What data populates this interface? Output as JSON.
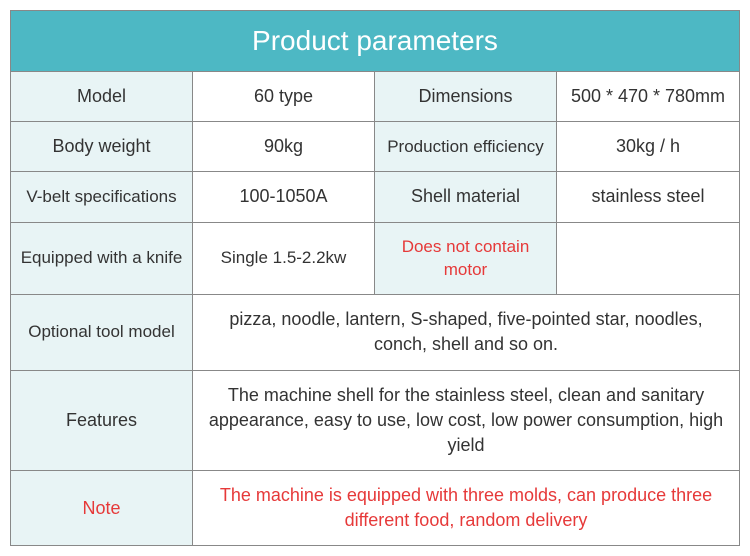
{
  "header": {
    "title": "Product parameters"
  },
  "colors": {
    "header_bg": "#4db8c4",
    "header_text": "#ffffff",
    "label_bg": "#e8f4f5",
    "warning_text": "#e63939",
    "border": "#888888",
    "body_text": "#333333"
  },
  "rows": [
    {
      "type": "four",
      "cells": [
        {
          "text": "Model",
          "label": true
        },
        {
          "text": "60 type",
          "label": false
        },
        {
          "text": "Dimensions",
          "label": true
        },
        {
          "text": "500 * 470 * 780mm",
          "label": false
        }
      ]
    },
    {
      "type": "four",
      "cells": [
        {
          "text": "Body weight",
          "label": true
        },
        {
          "text": "90kg",
          "label": false
        },
        {
          "text": "Production efficiency",
          "label": true
        },
        {
          "text": "30kg / h",
          "label": false
        }
      ]
    },
    {
      "type": "four",
      "cells": [
        {
          "text": "V-belt specifications",
          "label": true
        },
        {
          "text": "100-1050A",
          "label": false
        },
        {
          "text": "Shell material",
          "label": true
        },
        {
          "text": "stainless steel",
          "label": false
        }
      ]
    },
    {
      "type": "four",
      "cells": [
        {
          "text": "Equipped with a knife",
          "label": true
        },
        {
          "text": "Single 1.5-2.2kw",
          "label": false
        },
        {
          "text": "Does not contain motor",
          "label": true,
          "red": true
        },
        {
          "text": "",
          "label": false
        }
      ]
    },
    {
      "type": "two",
      "cells": [
        {
          "text": "Optional tool model",
          "label": true
        },
        {
          "text": "pizza, noodle, lantern, S-shaped, five-pointed star, noodles, conch, shell and so on.",
          "label": false
        }
      ]
    },
    {
      "type": "two",
      "cells": [
        {
          "text": "Features",
          "label": true
        },
        {
          "text": "The machine shell for the stainless steel, clean and sanitary appearance, easy to use, low cost, low power consumption, high yield",
          "label": false
        }
      ]
    },
    {
      "type": "two",
      "cells": [
        {
          "text": "Note",
          "label": true,
          "red": true
        },
        {
          "text": "The machine is equipped with three molds, can produce three different food, random delivery",
          "label": false,
          "red": true
        }
      ]
    }
  ]
}
